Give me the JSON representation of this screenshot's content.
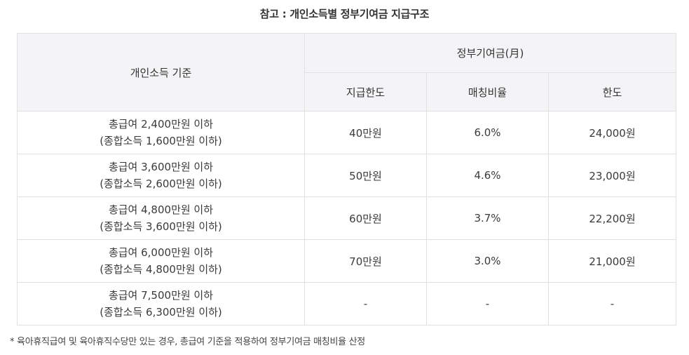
{
  "title": "참고 : 개인소득별 정부기여금 지급구조",
  "table": {
    "headers": {
      "income": "개인소득 기준",
      "group": "정부기여금(月)",
      "limit": "지급한도",
      "rate": "매칭비율",
      "cap": "한도"
    },
    "rows": [
      {
        "line1": "총급여 2,400만원 이하",
        "line2": "(종합소득 1,600만원 이하)",
        "limit": "40만원",
        "rate": "6.0%",
        "cap": "24,000원"
      },
      {
        "line1": "총급여 3,600만원 이하",
        "line2": "(종합소득 2,600만원 이하)",
        "limit": "50만원",
        "rate": "4.6%",
        "cap": "23,000원"
      },
      {
        "line1": "총급여 4,800만원 이하",
        "line2": "(종합소득 3,600만원 이하)",
        "limit": "60만원",
        "rate": "3.7%",
        "cap": "22,200원"
      },
      {
        "line1": "총급여 6,000만원 이하",
        "line2": "(종합소득 4,800만원 이하)",
        "limit": "70만원",
        "rate": "3.0%",
        "cap": "21,000원"
      },
      {
        "line1": "총급여 7,500만원 이하",
        "line2": "(종합소득 6,300만원 이하)",
        "limit": "-",
        "rate": "-",
        "cap": "-"
      }
    ]
  },
  "footnote": "* 육아휴직급여 및 육아휴직수당만 있는 경우, 총급여 기준을 적용하여 정부기여금 매칭비율 산정"
}
